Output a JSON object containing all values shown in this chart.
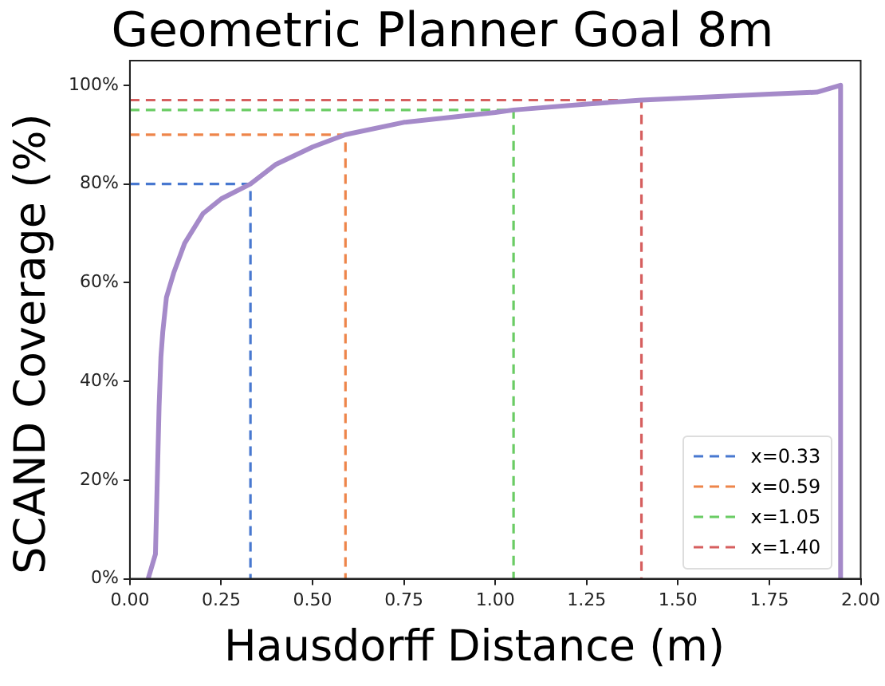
{
  "chart_data": {
    "type": "line",
    "title": "Geometric Planner Goal 8m",
    "xlabel": "Hausdorff Distance (m)",
    "ylabel": "SCAND Coverage (%)",
    "xlim": [
      0,
      2
    ],
    "xticks": [
      {
        "value": 0,
        "label": "0.00"
      },
      {
        "value": 0.25,
        "label": "0.25"
      },
      {
        "value": 0.5,
        "label": "0.50"
      },
      {
        "value": 0.75,
        "label": "0.75"
      },
      {
        "value": 1,
        "label": "1.00"
      },
      {
        "value": 1.25,
        "label": "1.25"
      },
      {
        "value": 1.5,
        "label": "1.50"
      },
      {
        "value": 1.75,
        "label": "1.75"
      },
      {
        "value": 2,
        "label": "2.00"
      }
    ],
    "ylim": [
      0,
      105
    ],
    "yticks": [
      {
        "value": 0,
        "label": "0%"
      },
      {
        "value": 20,
        "label": "20%"
      },
      {
        "value": 40,
        "label": "40%"
      },
      {
        "value": 60,
        "label": "60%"
      },
      {
        "value": 80,
        "label": "80%"
      },
      {
        "value": 100,
        "label": "100%"
      }
    ],
    "grid": false,
    "legend": "bottom right",
    "marker": "none",
    "series": [
      {
        "color": "#a58ac9",
        "line_style": "solid",
        "x": [
          0.05,
          0.07,
          0.075,
          0.08,
          0.085,
          0.09,
          0.1,
          0.12,
          0.15,
          0.2,
          0.25,
          0.33,
          0.4,
          0.5,
          0.59,
          0.75,
          1.0,
          1.05,
          1.25,
          1.4,
          1.75,
          1.88,
          1.945,
          1.945
        ],
        "values": [
          0,
          5,
          20,
          35,
          45,
          50,
          57,
          62,
          68,
          74,
          77,
          80,
          84,
          87.5,
          90,
          92.5,
          94.5,
          95,
          96.2,
          97,
          98.2,
          98.6,
          100,
          0
        ]
      },
      {
        "name": "x=0.33",
        "color": "#4878d0",
        "line_style": "dashed",
        "x": [
          0,
          0.33,
          0.33
        ],
        "values": [
          80,
          80,
          0
        ]
      },
      {
        "name": "x=0.59",
        "color": "#ee854a",
        "line_style": "dashed",
        "x": [
          0,
          0.59,
          0.59
        ],
        "values": [
          90,
          90,
          0
        ]
      },
      {
        "name": "x=1.05",
        "color": "#6acc64",
        "line_style": "dashed",
        "x": [
          0,
          1.05,
          1.05
        ],
        "values": [
          95,
          95,
          0
        ]
      },
      {
        "name": "x=1.40",
        "color": "#d65f5f",
        "line_style": "dashed",
        "x": [
          0,
          1.4,
          1.4
        ],
        "values": [
          97,
          97,
          0
        ]
      }
    ]
  }
}
